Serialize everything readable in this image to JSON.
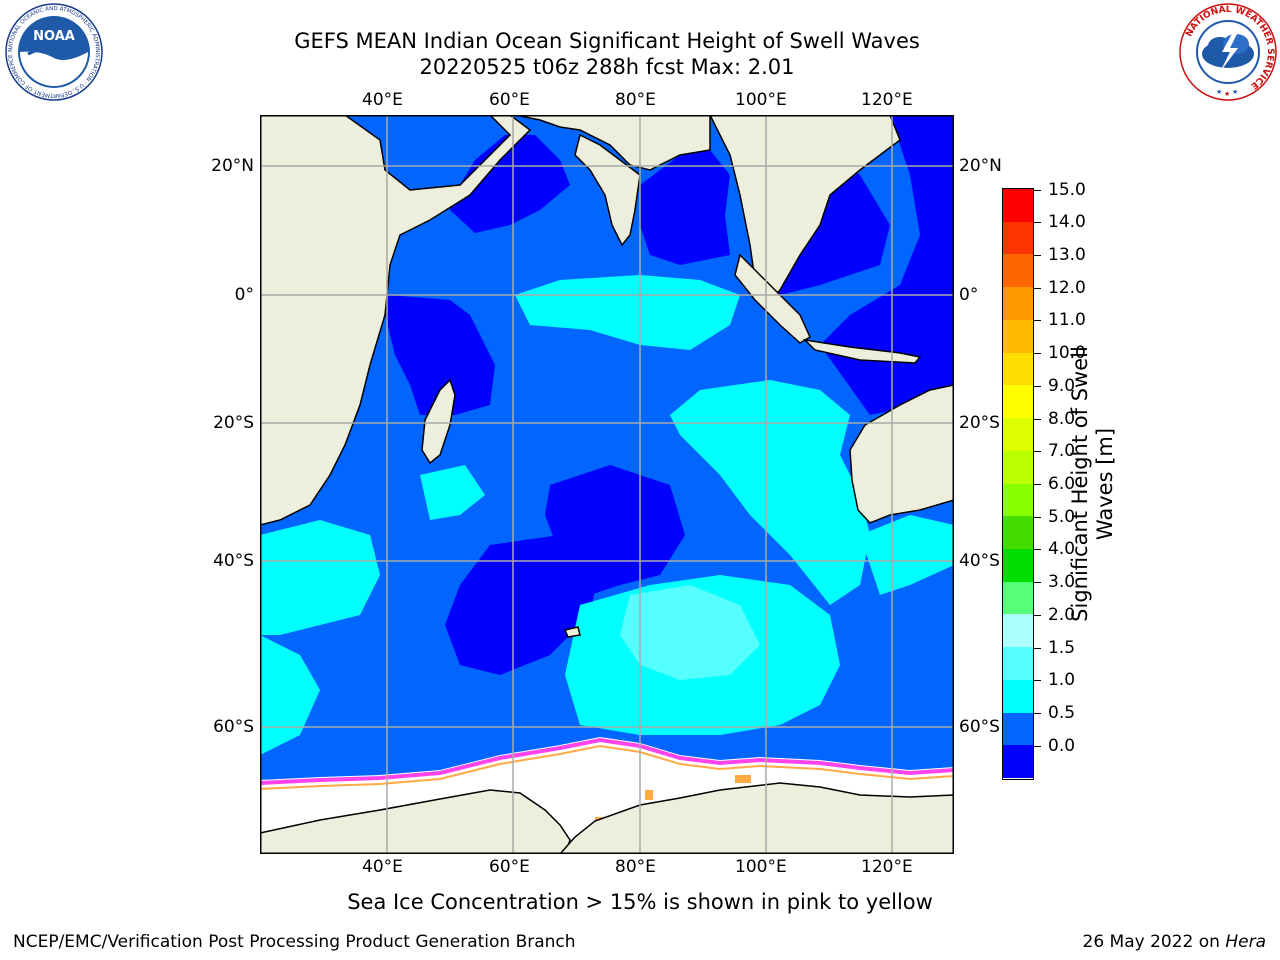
{
  "title": {
    "line1": "GEFS MEAN Indian Ocean Significant Height of Swell Waves",
    "line2": "20220525 t06z 288h fcst   Max: 2.01"
  },
  "map": {
    "lon_ticks": [
      "40°E",
      "60°E",
      "80°E",
      "100°E",
      "120°E"
    ],
    "lat_ticks": [
      "20°N",
      "0°",
      "20°S",
      "40°S",
      "60°S"
    ],
    "colors": {
      "ocean_dark": "#0000ff",
      "ocean_mid": "#0066ff",
      "swell_cyan": "#00ffff",
      "swell_light": "#55ffff",
      "land": "#eeeedd",
      "ice": "#ffffff",
      "ice_edge_pink": "#ff44ee",
      "ice_edge_orange": "#ffaa44",
      "grid": "#aaaaaa"
    }
  },
  "colorbar": {
    "title": "Significant Height of Swell Waves [m]",
    "labels": [
      "15.0",
      "14.0",
      "13.0",
      "12.0",
      "11.0",
      "10.0",
      "9.0",
      "8.0",
      "7.0",
      "6.0",
      "5.0",
      "4.0",
      "3.0",
      "2.0",
      "1.5",
      "1.0",
      "0.5",
      "0.0"
    ],
    "segment_colors": [
      "#ff0000",
      "#ff3300",
      "#ff6600",
      "#ff9900",
      "#ffbb00",
      "#ffdd00",
      "#ffff00",
      "#ddff00",
      "#bbff00",
      "#88ff00",
      "#44dd00",
      "#00dd00",
      "#55ff77",
      "#aaffff",
      "#55ffff",
      "#00ffff",
      "#0066ff",
      "#0000ff"
    ]
  },
  "caption": "Sea Ice Concentration > 15% is shown in pink to yellow",
  "footer": {
    "left": "NCEP/EMC/Verification Post Processing Product Generation Branch",
    "right_prefix": "26 May 2022 on ",
    "right_host": "Hera"
  },
  "logos": {
    "noaa": "NOAA",
    "noaa_ring": "NATIONAL OCEANIC AND ATMOSPHERIC ADMINISTRATION · U.S. DEPARTMENT OF COMMERCE",
    "nws_ring": "NATIONAL WEATHER SERVICE"
  }
}
